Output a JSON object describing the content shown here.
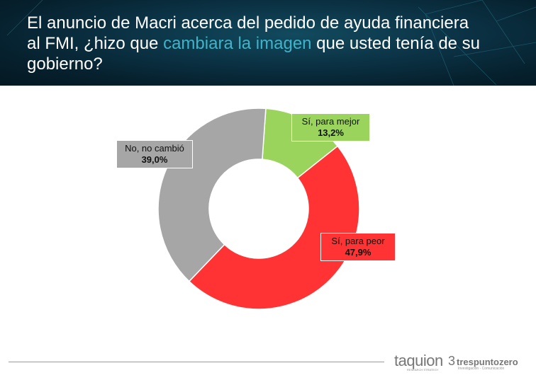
{
  "header": {
    "title_part1": "El anuncio de Macri acerca del pedido de ayuda financiera al FMI, ¿hizo que ",
    "title_highlight": "cambiara la imagen",
    "title_part2": " que usted tenía de su gobierno?",
    "highlight_color": "#3fb4c8"
  },
  "chart_data": {
    "type": "pie",
    "subtype": "donut",
    "title": "El anuncio de Macri acerca del pedido de ayuda financiera al FMI, ¿hizo que cambiara la imagen que usted tenía de su gobierno?",
    "categories": [
      "Sí, para mejor",
      "Sí, para peor",
      "No, no cambió"
    ],
    "values": [
      13.2,
      47.9,
      39.0
    ],
    "value_labels": [
      "13,2%",
      "47,9%",
      "39,0%"
    ],
    "colors": [
      "#9bd45c",
      "#ff3333",
      "#a6a6a6"
    ],
    "start_angle_deg": 0,
    "direction": "clockwise",
    "legend": "none (data labels on slices)"
  },
  "labels": [
    {
      "name": "Sí, para mejor",
      "value": "13,2%"
    },
    {
      "name": "Sí, para peor",
      "value": "47,9%"
    },
    {
      "name": "No, no cambió",
      "value": "39,0%"
    }
  ],
  "footer": {
    "logo1": "taquion",
    "logo1_sub": "RESEARCH STRATEGY",
    "logo2_mark": "3",
    "logo2": "trespuntozero",
    "logo2_sub": "Investigación - Comunicación"
  }
}
